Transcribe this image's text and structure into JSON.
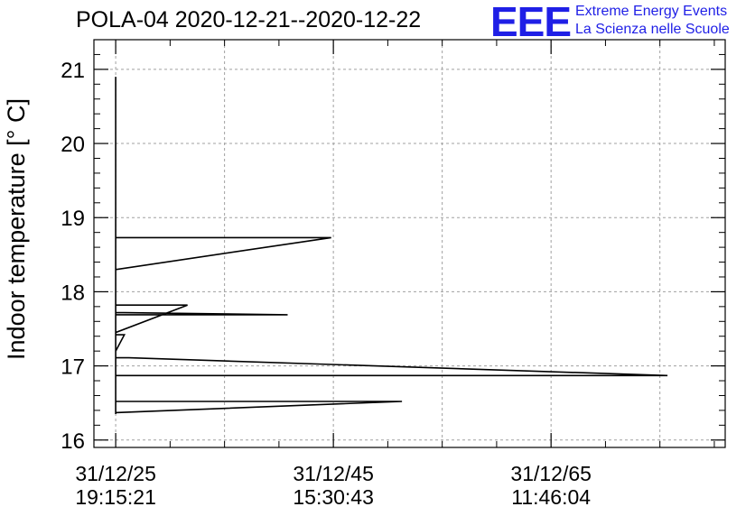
{
  "header": {
    "title": "POLA-04 2020-12-21--2020-12-22",
    "logo_text": "EEE",
    "logo_line1": "Extreme Energy Events",
    "logo_line2": "La Scienza nelle Scuole",
    "logo_color": "#1f1fe6"
  },
  "chart_data": {
    "type": "line",
    "title": "POLA-04 2020-12-21--2020-12-22",
    "xlabel": "",
    "ylabel": "Indoor temperature [° C]",
    "ylim": [
      15.9,
      21.4
    ],
    "xlim": [
      -0.2,
      5.6
    ],
    "grid": true,
    "y_ticks": [
      16,
      17,
      18,
      19,
      20,
      21
    ],
    "x_ticks": [
      {
        "x": 0.0,
        "line1": "31/12/25",
        "line2": "19:15:21"
      },
      {
        "x": 2.0,
        "line1": "31/12/45",
        "line2": "15:30:43"
      },
      {
        "x": 4.0,
        "line1": "31/12/65",
        "line2": "11:46:04"
      }
    ],
    "series": [
      {
        "color": "#000000",
        "points": [
          [
            0.0,
            20.9
          ],
          [
            0.0,
            16.35
          ],
          [
            0.0,
            16.37
          ],
          [
            2.63,
            16.52
          ],
          [
            0.0,
            16.52
          ],
          [
            0.0,
            16.87
          ],
          [
            5.07,
            16.87
          ],
          [
            0.12,
            17.11
          ],
          [
            0.0,
            17.11
          ],
          [
            0.0,
            17.2
          ],
          [
            0.08,
            17.42
          ],
          [
            0.0,
            17.42
          ],
          [
            0.0,
            17.45
          ],
          [
            0.66,
            17.82
          ],
          [
            0.0,
            17.82
          ],
          [
            0.0,
            17.72
          ],
          [
            1.58,
            17.69
          ],
          [
            0.0,
            17.69
          ],
          [
            0.0,
            18.3
          ],
          [
            1.98,
            18.73
          ],
          [
            0.0,
            18.73
          ],
          [
            0.0,
            20.9
          ]
        ]
      }
    ]
  }
}
